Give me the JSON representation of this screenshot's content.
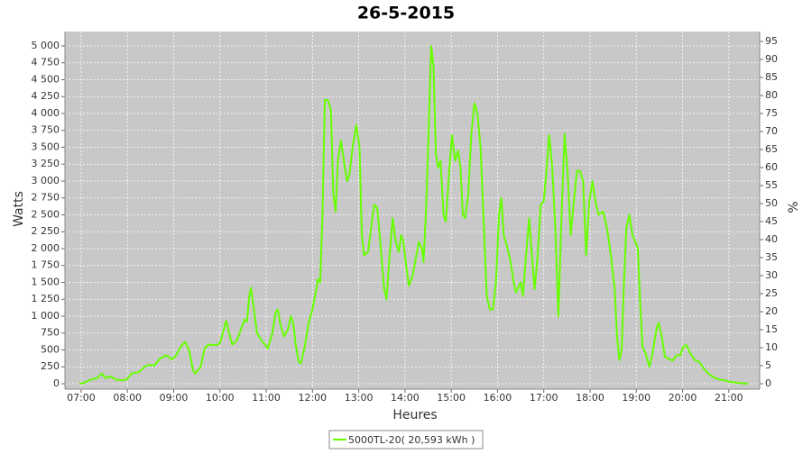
{
  "chart_data": {
    "type": "line",
    "title": "26-5-2015",
    "x_label": "Heures",
    "y_label": "Watts",
    "y2_label": "%",
    "xlim": [
      "06:39",
      "21:40"
    ],
    "xticks": [
      "07:00",
      "08:00",
      "09:00",
      "10:00",
      "11:00",
      "12:00",
      "13:00",
      "14:00",
      "15:00",
      "16:00",
      "17:00",
      "18:00",
      "19:00",
      "20:00",
      "21:00"
    ],
    "ylim": [
      -80,
      5213
    ],
    "yticks": [
      0,
      250,
      500,
      750,
      {
        "value": 1000,
        "label": "1 000"
      },
      {
        "value": 1250,
        "label": "1 250"
      },
      {
        "value": 1500,
        "label": "1 500"
      },
      {
        "value": 1750,
        "label": "1 750"
      },
      {
        "value": 2000,
        "label": "2 000"
      },
      {
        "value": 2250,
        "label": "2 250"
      },
      {
        "value": 2500,
        "label": "2 500"
      },
      {
        "value": 2750,
        "label": "2 750"
      },
      {
        "value": 3000,
        "label": "3 000"
      },
      {
        "value": 3250,
        "label": "3 250"
      },
      {
        "value": 3500,
        "label": "3 500"
      },
      {
        "value": 3750,
        "label": "3 750"
      },
      {
        "value": 4000,
        "label": "4 000"
      },
      {
        "value": 4250,
        "label": "4 250"
      },
      {
        "value": 4500,
        "label": "4 500"
      },
      {
        "value": 4750,
        "label": "4 750"
      },
      {
        "value": 5000,
        "label": "5 000"
      }
    ],
    "y2lim": [
      -1.5,
      97.75
    ],
    "y2ticks": [
      0,
      5,
      10,
      15,
      20,
      25,
      30,
      35,
      40,
      45,
      50,
      55,
      60,
      65,
      70,
      75,
      80,
      85,
      90,
      95
    ],
    "grid": true,
    "legend": "bottom",
    "x": [
      "06:58",
      "07:05",
      "07:12",
      "07:20",
      "07:27",
      "07:32",
      "07:38",
      "07:45",
      "07:55",
      "08:00",
      "08:05",
      "08:15",
      "08:22",
      "08:28",
      "08:35",
      "08:42",
      "08:50",
      "08:58",
      "09:03",
      "09:10",
      "09:15",
      "09:20",
      "09:25",
      "09:28",
      "09:35",
      "09:40",
      "09:45",
      "09:55",
      "10:00",
      "10:05",
      "10:08",
      "10:13",
      "10:16",
      "10:22",
      "10:27",
      "10:32",
      "10:35",
      "10:38",
      "10:40",
      "10:43",
      "10:48",
      "10:55",
      "11:00",
      "11:02",
      "11:08",
      "11:12",
      "11:15",
      "11:18",
      "11:23",
      "11:28",
      "11:32",
      "11:35",
      "11:38",
      "11:42",
      "11:45",
      "11:50",
      "11:55",
      "12:00",
      "12:05",
      "12:07",
      "12:10",
      "12:13",
      "12:16",
      "12:20",
      "12:24",
      "12:27",
      "12:30",
      "12:33",
      "12:37",
      "12:42",
      "12:45",
      "12:48",
      "12:52",
      "12:57",
      "13:01",
      "13:04",
      "13:07",
      "13:12",
      "13:16",
      "13:20",
      "13:24",
      "13:28",
      "13:33",
      "13:36",
      "13:40",
      "13:44",
      "13:48",
      "13:52",
      "13:55",
      "13:58",
      "14:02",
      "14:05",
      "14:10",
      "14:14",
      "14:18",
      "14:22",
      "14:24",
      "14:27",
      "14:30",
      "14:34",
      "14:37",
      "14:40",
      "14:43",
      "14:46",
      "14:50",
      "14:53",
      "14:57",
      "15:01",
      "15:05",
      "15:09",
      "15:12",
      "15:15",
      "15:18",
      "15:22",
      "15:26",
      "15:30",
      "15:34",
      "15:38",
      "15:42",
      "15:46",
      "15:50",
      "15:54",
      "15:58",
      "16:02",
      "16:05",
      "16:08",
      "16:12",
      "16:17",
      "16:21",
      "16:24",
      "16:30",
      "16:33",
      "16:37",
      "16:41",
      "16:44",
      "16:48",
      "16:52",
      "16:56",
      "17:00",
      "17:03",
      "17:07",
      "17:11",
      "17:15",
      "17:19",
      "17:23",
      "17:27",
      "17:31",
      "17:35",
      "17:39",
      "17:43",
      "17:47",
      "17:51",
      "17:55",
      "17:59",
      "18:03",
      "18:07",
      "18:11",
      "18:17",
      "18:22",
      "18:27",
      "18:32",
      "18:35",
      "18:38",
      "18:41",
      "18:44",
      "18:47",
      "18:51",
      "18:55",
      "18:59",
      "19:02",
      "19:05",
      "19:08",
      "19:12",
      "19:17",
      "19:21",
      "19:26",
      "19:29",
      "19:33",
      "19:37",
      "19:42",
      "19:47",
      "19:52",
      "19:57",
      "20:01",
      "20:05",
      "20:10",
      "20:16",
      "20:22",
      "20:27",
      "20:32",
      "20:37",
      "20:43",
      "20:49",
      "20:55",
      "21:00",
      "21:08",
      "21:15",
      "21:25"
    ],
    "series": [
      {
        "name": "5000TL-20( 20,593 kWh )",
        "color": "#66ff00",
        "values": [
          0,
          20,
          60,
          80,
          150,
          80,
          110,
          60,
          50,
          70,
          150,
          170,
          250,
          280,
          270,
          370,
          420,
          360,
          420,
          560,
          620,
          500,
          200,
          150,
          250,
          520,
          580,
          570,
          600,
          800,
          930,
          700,
          580,
          640,
          800,
          950,
          920,
          1300,
          1420,
          1200,
          750,
          620,
          560,
          520,
          750,
          1050,
          1100,
          900,
          700,
          800,
          1000,
          900,
          600,
          330,
          300,
          550,
          900,
          1100,
          1400,
          1550,
          1500,
          2500,
          4200,
          4200,
          4050,
          2800,
          2550,
          3300,
          3600,
          3200,
          3000,
          3100,
          3500,
          3830,
          3500,
          2200,
          1900,
          1950,
          2300,
          2650,
          2600,
          2100,
          1400,
          1250,
          1900,
          2450,
          2100,
          1950,
          2200,
          2100,
          1700,
          1450,
          1600,
          1850,
          2100,
          2000,
          1800,
          2500,
          3500,
          5000,
          4700,
          3400,
          3200,
          3300,
          2500,
          2400,
          3100,
          3680,
          3300,
          3450,
          3200,
          2500,
          2450,
          2800,
          3700,
          4150,
          4000,
          3500,
          2400,
          1300,
          1100,
          1100,
          1500,
          2500,
          2750,
          2200,
          2050,
          1800,
          1500,
          1350,
          1500,
          1300,
          1900,
          2450,
          2000,
          1400,
          1900,
          2650,
          2700,
          3100,
          3680,
          3200,
          2300,
          1000,
          2500,
          3700,
          3100,
          2200,
          2700,
          3150,
          3150,
          3000,
          1900,
          2700,
          3000,
          2700,
          2500,
          2550,
          2300,
          1900,
          1400,
          700,
          350,
          500,
          1500,
          2300,
          2500,
          2200,
          2100,
          2000,
          1200,
          550,
          450,
          250,
          450,
          800,
          900,
          700,
          400,
          370,
          340,
          420,
          420,
          550,
          570,
          450,
          350,
          320,
          230,
          170,
          120,
          80,
          60,
          50,
          30,
          20,
          10,
          0
        ]
      }
    ]
  }
}
